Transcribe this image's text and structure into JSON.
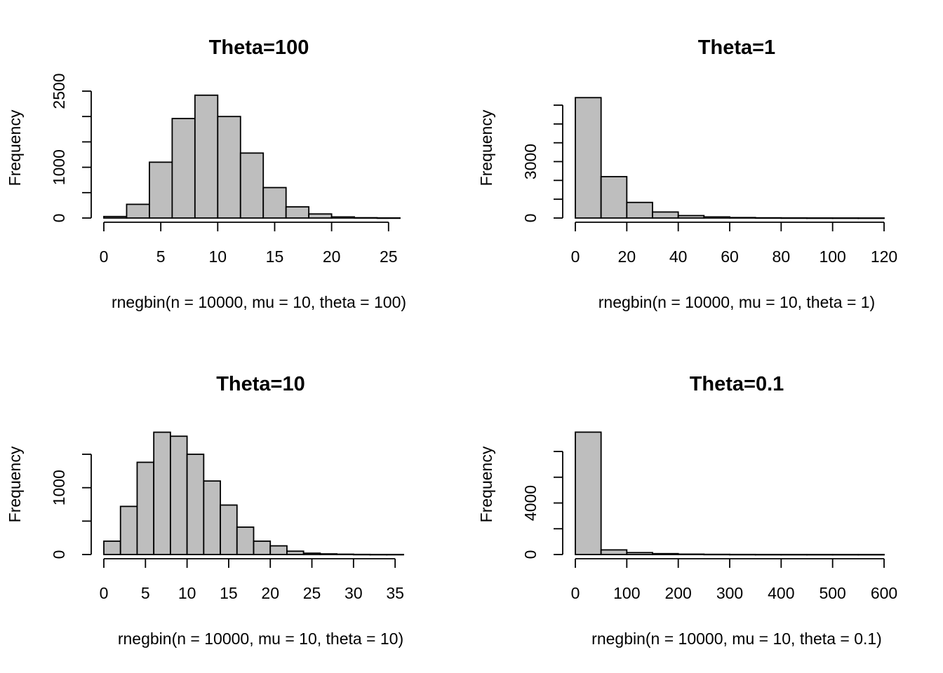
{
  "chart_data": [
    {
      "type": "bar",
      "title": "Theta=100",
      "xlabel": "rnegbin(n = 10000, mu = 10, theta = 100)",
      "ylabel": "Frequency",
      "bin_edges": [
        0,
        2,
        4,
        6,
        8,
        10,
        12,
        14,
        16,
        18,
        20,
        22,
        24,
        26
      ],
      "values": [
        30,
        270,
        1100,
        1960,
        2420,
        2000,
        1280,
        600,
        220,
        80,
        22,
        6,
        2
      ],
      "xlim": [
        0,
        26
      ],
      "ylim": [
        0,
        2500
      ],
      "x_ticks": [
        "0",
        "5",
        "10",
        "15",
        "20",
        "25"
      ],
      "y_ticks": [
        "0",
        "1000",
        "2500"
      ]
    },
    {
      "type": "bar",
      "title": "Theta=1",
      "xlabel": "rnegbin(n = 10000, mu = 10, theta = 1)",
      "ylabel": "Frequency",
      "bin_edges": [
        0,
        10,
        20,
        30,
        40,
        50,
        60,
        70,
        80,
        90,
        100,
        110,
        120
      ],
      "values": [
        6400,
        2200,
        830,
        320,
        130,
        60,
        25,
        12,
        6,
        3,
        2,
        1
      ],
      "xlim": [
        0,
        120
      ],
      "ylim": [
        0,
        6000
      ],
      "x_ticks": [
        "0",
        "20",
        "40",
        "60",
        "80",
        "100",
        "120"
      ],
      "y_ticks": [
        "0",
        "3000"
      ]
    },
    {
      "type": "bar",
      "title": "Theta=10",
      "xlabel": "rnegbin(n = 10000, mu = 10, theta = 10)",
      "ylabel": "Frequency",
      "bin_edges": [
        0,
        2,
        4,
        6,
        8,
        10,
        12,
        14,
        16,
        18,
        20,
        22,
        24,
        26,
        28,
        30,
        32,
        34,
        36
      ],
      "values": [
        200,
        720,
        1380,
        1830,
        1770,
        1500,
        1100,
        740,
        410,
        200,
        130,
        50,
        20,
        10,
        5,
        2,
        1,
        1
      ],
      "xlim": [
        0,
        36
      ],
      "ylim": [
        0,
        1500
      ],
      "x_ticks": [
        "0",
        "5",
        "10",
        "15",
        "20",
        "25",
        "30",
        "35"
      ],
      "y_ticks": [
        "0",
        "1000"
      ]
    },
    {
      "type": "bar",
      "title": "Theta=0.1",
      "xlabel": "rnegbin(n = 10000, mu = 10, theta = 0.1)",
      "ylabel": "Frequency",
      "bin_edges": [
        0,
        50,
        100,
        150,
        200,
        250,
        300,
        350,
        400,
        450,
        500,
        550,
        600
      ],
      "values": [
        9500,
        360,
        150,
        70,
        30,
        15,
        8,
        4,
        3,
        2,
        1,
        1
      ],
      "xlim": [
        0,
        600
      ],
      "ylim": [
        0,
        8000
      ],
      "x_ticks": [
        "0",
        "100",
        "200",
        "300",
        "400",
        "500",
        "600"
      ],
      "y_ticks": [
        "0",
        "4000"
      ]
    }
  ]
}
